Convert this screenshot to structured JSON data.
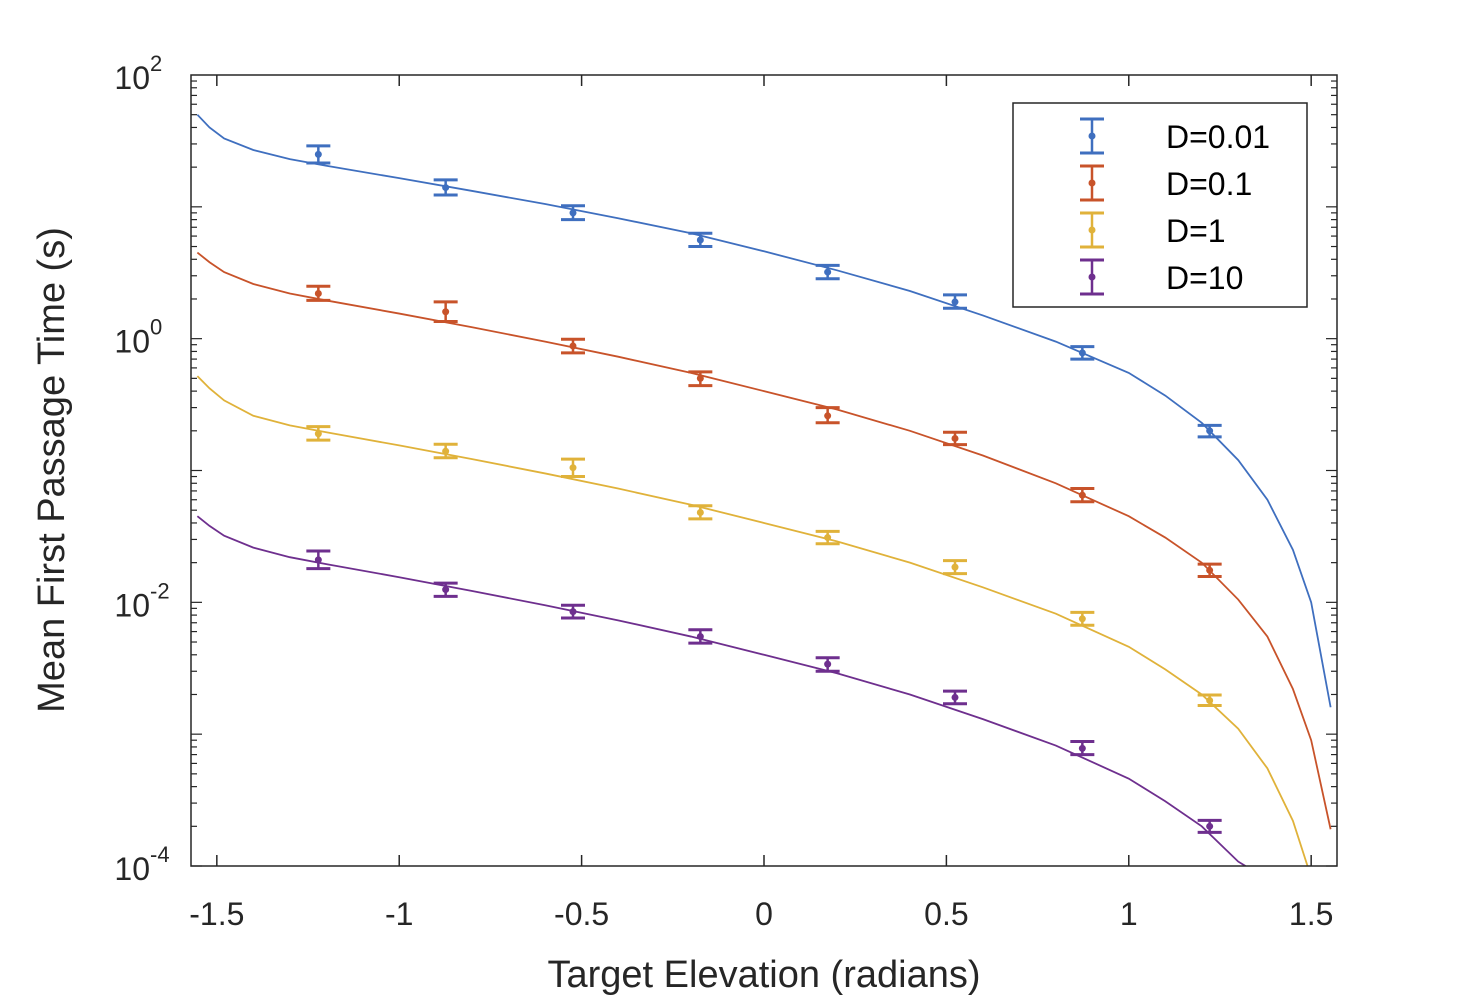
{
  "chart_data": {
    "type": "scatter",
    "xlabel": "Target Elevation (radians)",
    "ylabel": "Mean First Passage Time (s)",
    "xlim": [
      -1.5708,
      1.5708
    ],
    "ylim": [
      0.0001,
      100
    ],
    "yscale": "log",
    "grid": false,
    "legend_position": "top-right",
    "x_ticks": [
      {
        "value": -1.5,
        "label": "-1.5"
      },
      {
        "value": -1,
        "label": "-1"
      },
      {
        "value": -0.5,
        "label": "-0.5"
      },
      {
        "value": 0,
        "label": "0"
      },
      {
        "value": 0.5,
        "label": "0.5"
      },
      {
        "value": 1,
        "label": "1"
      },
      {
        "value": 1.5,
        "label": "1.5"
      }
    ],
    "y_ticks": [
      {
        "value": 0.0001,
        "base": "10",
        "exp": "-4"
      },
      {
        "value": 0.01,
        "base": "10",
        "exp": "-2"
      },
      {
        "value": 1,
        "base": "10",
        "exp": "0"
      },
      {
        "value": 100,
        "base": "10",
        "exp": "2"
      }
    ],
    "series": [
      {
        "name": "D=0.01",
        "color": "#3f6fbf",
        "points": [
          {
            "x": -1.2217,
            "y": 25.0,
            "lo": 21.5,
            "hi": 29.0
          },
          {
            "x": -0.8727,
            "y": 14.0,
            "lo": 12.3,
            "hi": 16.0
          },
          {
            "x": -0.5236,
            "y": 9.0,
            "lo": 8.0,
            "hi": 10.2
          },
          {
            "x": -0.1745,
            "y": 5.6,
            "lo": 5.0,
            "hi": 6.3
          },
          {
            "x": 0.1745,
            "y": 3.2,
            "lo": 2.85,
            "hi": 3.6
          },
          {
            "x": 0.5236,
            "y": 1.9,
            "lo": 1.7,
            "hi": 2.15
          },
          {
            "x": 0.8727,
            "y": 0.78,
            "lo": 0.7,
            "hi": 0.87
          },
          {
            "x": 1.2217,
            "y": 0.2,
            "lo": 0.18,
            "hi": 0.22
          }
        ],
        "curve": [
          {
            "x": -1.5533,
            "y": 50
          },
          {
            "x": -1.52,
            "y": 40
          },
          {
            "x": -1.48,
            "y": 33
          },
          {
            "x": -1.4,
            "y": 27
          },
          {
            "x": -1.3,
            "y": 23
          },
          {
            "x": -1.2,
            "y": 20.5
          },
          {
            "x": -1.0,
            "y": 16.5
          },
          {
            "x": -0.8,
            "y": 13.2
          },
          {
            "x": -0.6,
            "y": 10.5
          },
          {
            "x": -0.4,
            "y": 8.2
          },
          {
            "x": -0.2,
            "y": 6.3
          },
          {
            "x": 0.0,
            "y": 4.6
          },
          {
            "x": 0.2,
            "y": 3.3
          },
          {
            "x": 0.4,
            "y": 2.3
          },
          {
            "x": 0.6,
            "y": 1.5
          },
          {
            "x": 0.8,
            "y": 0.95
          },
          {
            "x": 1.0,
            "y": 0.55
          },
          {
            "x": 1.1,
            "y": 0.37
          },
          {
            "x": 1.2,
            "y": 0.23
          },
          {
            "x": 1.3,
            "y": 0.12
          },
          {
            "x": 1.38,
            "y": 0.06
          },
          {
            "x": 1.45,
            "y": 0.025
          },
          {
            "x": 1.5,
            "y": 0.01
          },
          {
            "x": 1.5533,
            "y": 0.0016
          }
        ]
      },
      {
        "name": "D=0.1",
        "color": "#c8532a",
        "points": [
          {
            "x": -1.2217,
            "y": 2.2,
            "lo": 1.95,
            "hi": 2.5
          },
          {
            "x": -0.8727,
            "y": 1.6,
            "lo": 1.35,
            "hi": 1.9
          },
          {
            "x": -0.5236,
            "y": 0.88,
            "lo": 0.78,
            "hi": 0.99
          },
          {
            "x": -0.1745,
            "y": 0.5,
            "lo": 0.44,
            "hi": 0.56
          },
          {
            "x": 0.1745,
            "y": 0.26,
            "lo": 0.23,
            "hi": 0.3
          },
          {
            "x": 0.5236,
            "y": 0.175,
            "lo": 0.157,
            "hi": 0.195
          },
          {
            "x": 0.8727,
            "y": 0.065,
            "lo": 0.058,
            "hi": 0.073
          },
          {
            "x": 1.2217,
            "y": 0.0175,
            "lo": 0.0157,
            "hi": 0.0195
          }
        ],
        "curve": [
          {
            "x": -1.5533,
            "y": 4.5
          },
          {
            "x": -1.52,
            "y": 3.8
          },
          {
            "x": -1.48,
            "y": 3.2
          },
          {
            "x": -1.4,
            "y": 2.6
          },
          {
            "x": -1.3,
            "y": 2.2
          },
          {
            "x": -1.2,
            "y": 1.95
          },
          {
            "x": -1.0,
            "y": 1.55
          },
          {
            "x": -0.8,
            "y": 1.22
          },
          {
            "x": -0.6,
            "y": 0.95
          },
          {
            "x": -0.4,
            "y": 0.73
          },
          {
            "x": -0.2,
            "y": 0.55
          },
          {
            "x": 0.0,
            "y": 0.4
          },
          {
            "x": 0.2,
            "y": 0.29
          },
          {
            "x": 0.4,
            "y": 0.2
          },
          {
            "x": 0.6,
            "y": 0.13
          },
          {
            "x": 0.8,
            "y": 0.08
          },
          {
            "x": 1.0,
            "y": 0.045
          },
          {
            "x": 1.1,
            "y": 0.031
          },
          {
            "x": 1.2,
            "y": 0.02
          },
          {
            "x": 1.3,
            "y": 0.0105
          },
          {
            "x": 1.38,
            "y": 0.0055
          },
          {
            "x": 1.45,
            "y": 0.0022
          },
          {
            "x": 1.5,
            "y": 0.0009
          },
          {
            "x": 1.5533,
            "y": 0.00019
          }
        ]
      },
      {
        "name": "D=1",
        "color": "#e0b23a",
        "points": [
          {
            "x": -1.2217,
            "y": 0.19,
            "lo": 0.17,
            "hi": 0.215
          },
          {
            "x": -0.8727,
            "y": 0.14,
            "lo": 0.125,
            "hi": 0.158
          },
          {
            "x": -0.5236,
            "y": 0.105,
            "lo": 0.09,
            "hi": 0.122
          },
          {
            "x": -0.1745,
            "y": 0.048,
            "lo": 0.043,
            "hi": 0.054
          },
          {
            "x": 0.1745,
            "y": 0.031,
            "lo": 0.0278,
            "hi": 0.0345
          },
          {
            "x": 0.5236,
            "y": 0.0185,
            "lo": 0.0165,
            "hi": 0.0207
          },
          {
            "x": 0.8727,
            "y": 0.0075,
            "lo": 0.0067,
            "hi": 0.0084
          },
          {
            "x": 1.2217,
            "y": 0.0018,
            "lo": 0.00165,
            "hi": 0.00198
          }
        ],
        "curve": [
          {
            "x": -1.5533,
            "y": 0.52
          },
          {
            "x": -1.52,
            "y": 0.42
          },
          {
            "x": -1.48,
            "y": 0.34
          },
          {
            "x": -1.4,
            "y": 0.26
          },
          {
            "x": -1.3,
            "y": 0.22
          },
          {
            "x": -1.2,
            "y": 0.195
          },
          {
            "x": -1.0,
            "y": 0.155
          },
          {
            "x": -0.8,
            "y": 0.122
          },
          {
            "x": -0.6,
            "y": 0.095
          },
          {
            "x": -0.4,
            "y": 0.073
          },
          {
            "x": -0.2,
            "y": 0.055
          },
          {
            "x": 0.0,
            "y": 0.04
          },
          {
            "x": 0.2,
            "y": 0.029
          },
          {
            "x": 0.4,
            "y": 0.02
          },
          {
            "x": 0.6,
            "y": 0.013
          },
          {
            "x": 0.8,
            "y": 0.0082
          },
          {
            "x": 1.0,
            "y": 0.0046
          },
          {
            "x": 1.1,
            "y": 0.0031
          },
          {
            "x": 1.2,
            "y": 0.002
          },
          {
            "x": 1.3,
            "y": 0.0011
          },
          {
            "x": 1.38,
            "y": 0.00055
          },
          {
            "x": 1.45,
            "y": 0.00022
          },
          {
            "x": 1.49,
            "y": 0.0001
          }
        ]
      },
      {
        "name": "D=10",
        "color": "#6e2f8e",
        "points": [
          {
            "x": -1.2217,
            "y": 0.021,
            "lo": 0.018,
            "hi": 0.0245
          },
          {
            "x": -0.8727,
            "y": 0.0125,
            "lo": 0.0111,
            "hi": 0.014
          },
          {
            "x": -0.5236,
            "y": 0.0085,
            "lo": 0.0076,
            "hi": 0.0095
          },
          {
            "x": -0.1745,
            "y": 0.0055,
            "lo": 0.0049,
            "hi": 0.0062
          },
          {
            "x": 0.1745,
            "y": 0.0034,
            "lo": 0.003,
            "hi": 0.0038
          },
          {
            "x": 0.5236,
            "y": 0.0019,
            "lo": 0.0017,
            "hi": 0.00212
          },
          {
            "x": 0.8727,
            "y": 0.00078,
            "lo": 0.0007,
            "hi": 0.00088
          },
          {
            "x": 1.2217,
            "y": 0.0002,
            "lo": 0.00018,
            "hi": 0.000222
          }
        ],
        "curve": [
          {
            "x": -1.5533,
            "y": 0.045
          },
          {
            "x": -1.52,
            "y": 0.038
          },
          {
            "x": -1.48,
            "y": 0.032
          },
          {
            "x": -1.4,
            "y": 0.026
          },
          {
            "x": -1.3,
            "y": 0.022
          },
          {
            "x": -1.2,
            "y": 0.0195
          },
          {
            "x": -1.0,
            "y": 0.0155
          },
          {
            "x": -0.8,
            "y": 0.0122
          },
          {
            "x": -0.6,
            "y": 0.0095
          },
          {
            "x": -0.4,
            "y": 0.0073
          },
          {
            "x": -0.2,
            "y": 0.0055
          },
          {
            "x": 0.0,
            "y": 0.004
          },
          {
            "x": 0.2,
            "y": 0.0029
          },
          {
            "x": 0.4,
            "y": 0.002
          },
          {
            "x": 0.6,
            "y": 0.0013
          },
          {
            "x": 0.8,
            "y": 0.00082
          },
          {
            "x": 1.0,
            "y": 0.00046
          },
          {
            "x": 1.1,
            "y": 0.00031
          },
          {
            "x": 1.2,
            "y": 0.0002
          },
          {
            "x": 1.3,
            "y": 0.000108
          },
          {
            "x": 1.32,
            "y": 0.0001
          }
        ]
      }
    ]
  }
}
